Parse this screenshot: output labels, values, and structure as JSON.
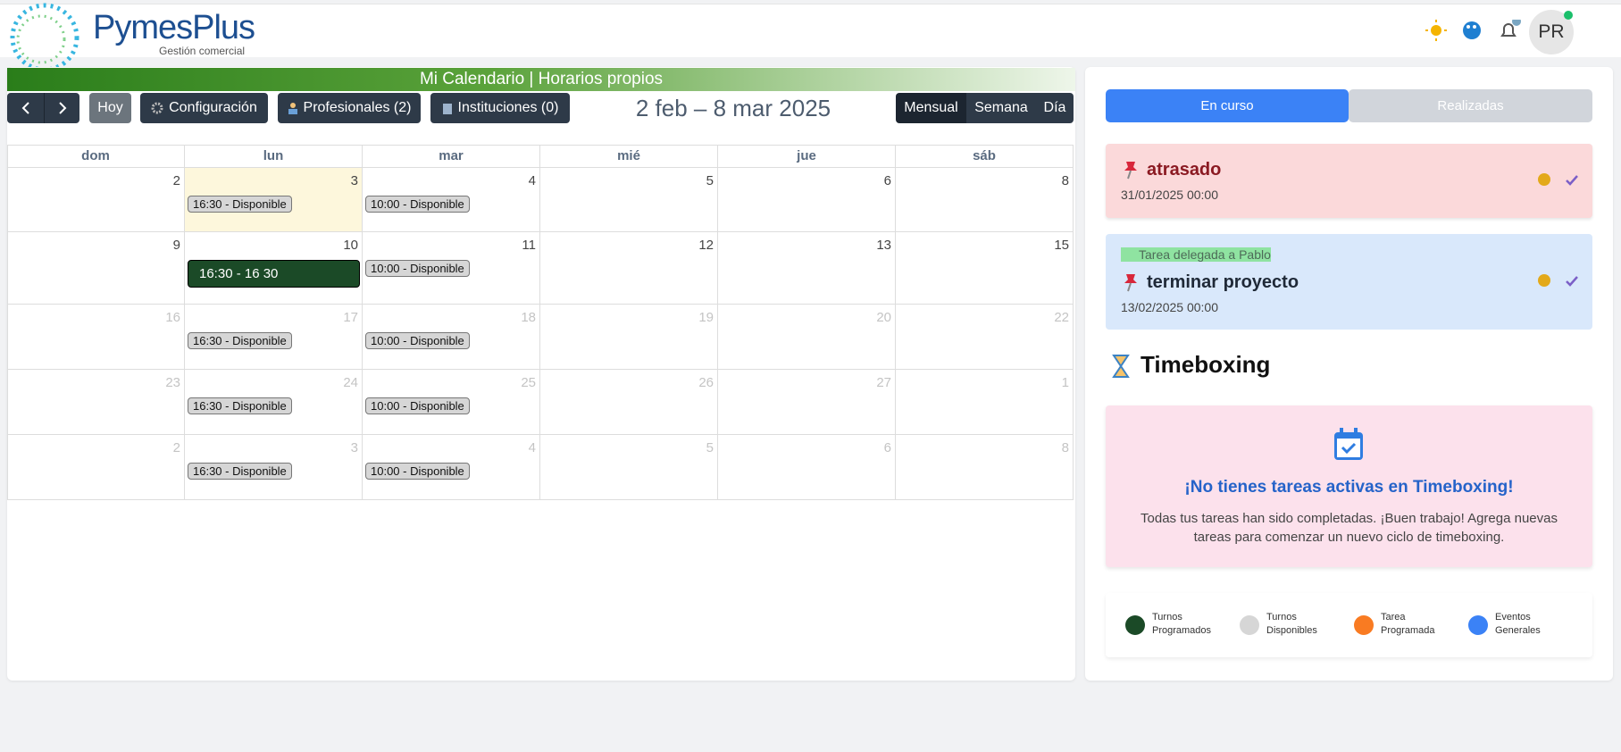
{
  "header": {
    "brand": "PymesPlus",
    "subtitle": "Gestión comercial",
    "avatar": "PR"
  },
  "calendar": {
    "title": "Mi Calendario | Horarios propios",
    "buttons": {
      "today": "Hoy",
      "settings": "Configuración",
      "professionals": "Profesionales (2)",
      "institutions": "Instituciones (0)"
    },
    "range": "2 feb – 8 mar 2025",
    "views": [
      "Mensual",
      "Semana",
      "Día"
    ],
    "weekdays": [
      "dom",
      "lun",
      "mar",
      "mié",
      "jue",
      "sáb"
    ],
    "weeks": [
      {
        "muted": false,
        "days": [
          {
            "num": 2
          },
          {
            "num": 3,
            "today": true,
            "events": [
              {
                "label": "16:30 - Disponible",
                "kind": "available"
              }
            ]
          },
          {
            "num": 4,
            "events": [
              {
                "label": "10:00 - Disponible",
                "kind": "available"
              }
            ]
          },
          {
            "num": 5
          },
          {
            "num": 6
          },
          {
            "num": 8
          }
        ]
      },
      {
        "muted": false,
        "days": [
          {
            "num": 9
          },
          {
            "num": 10,
            "events": [
              {
                "label": "16:30 - 16 30",
                "kind": "scheduled"
              }
            ]
          },
          {
            "num": 11,
            "events": [
              {
                "label": "10:00 - Disponible",
                "kind": "available"
              }
            ]
          },
          {
            "num": 12
          },
          {
            "num": 13
          },
          {
            "num": 15
          }
        ]
      },
      {
        "muted": true,
        "days": [
          {
            "num": 16
          },
          {
            "num": 17,
            "events": [
              {
                "label": "16:30 - Disponible",
                "kind": "available"
              }
            ]
          },
          {
            "num": 18,
            "events": [
              {
                "label": "10:00 - Disponible",
                "kind": "available"
              }
            ]
          },
          {
            "num": 19
          },
          {
            "num": 20
          },
          {
            "num": 22
          }
        ]
      },
      {
        "muted": true,
        "days": [
          {
            "num": 23
          },
          {
            "num": 24,
            "events": [
              {
                "label": "16:30 - Disponible",
                "kind": "available"
              }
            ]
          },
          {
            "num": 25,
            "events": [
              {
                "label": "10:00 - Disponible",
                "kind": "available"
              }
            ]
          },
          {
            "num": 26
          },
          {
            "num": 27
          },
          {
            "num": 1
          }
        ]
      },
      {
        "muted": true,
        "days": [
          {
            "num": 2
          },
          {
            "num": 3,
            "events": [
              {
                "label": "16:30 - Disponible",
                "kind": "available"
              }
            ]
          },
          {
            "num": 4,
            "events": [
              {
                "label": "10:00 - Disponible",
                "kind": "available"
              }
            ]
          },
          {
            "num": 5
          },
          {
            "num": 6
          },
          {
            "num": 8
          }
        ]
      }
    ]
  },
  "tasks": {
    "tabs": [
      "En curso",
      "Realizadas"
    ],
    "items": [
      {
        "title": "atrasado",
        "date": "31/01/2025 00:00"
      },
      {
        "delegated": "Tarea delegada a Pablo",
        "title": "terminar proyecto",
        "date": "13/02/2025 00:00"
      }
    ]
  },
  "timeboxing": {
    "heading": "Timeboxing",
    "empty_title": "¡No tienes tareas activas en Timeboxing!",
    "empty_text": "Todas tus tareas han sido completadas. ¡Buen trabajo! Agrega nuevas tareas para comenzar un nuevo ciclo de timeboxing."
  },
  "legend": [
    {
      "label": "Turnos Programados",
      "color": "#1b4a27"
    },
    {
      "label": "Turnos Disponibles",
      "color": "#d6d6d6"
    },
    {
      "label": "Tarea Programada",
      "color": "#f97b22"
    },
    {
      "label": "Eventos Generales",
      "color": "#3b82f6"
    }
  ]
}
